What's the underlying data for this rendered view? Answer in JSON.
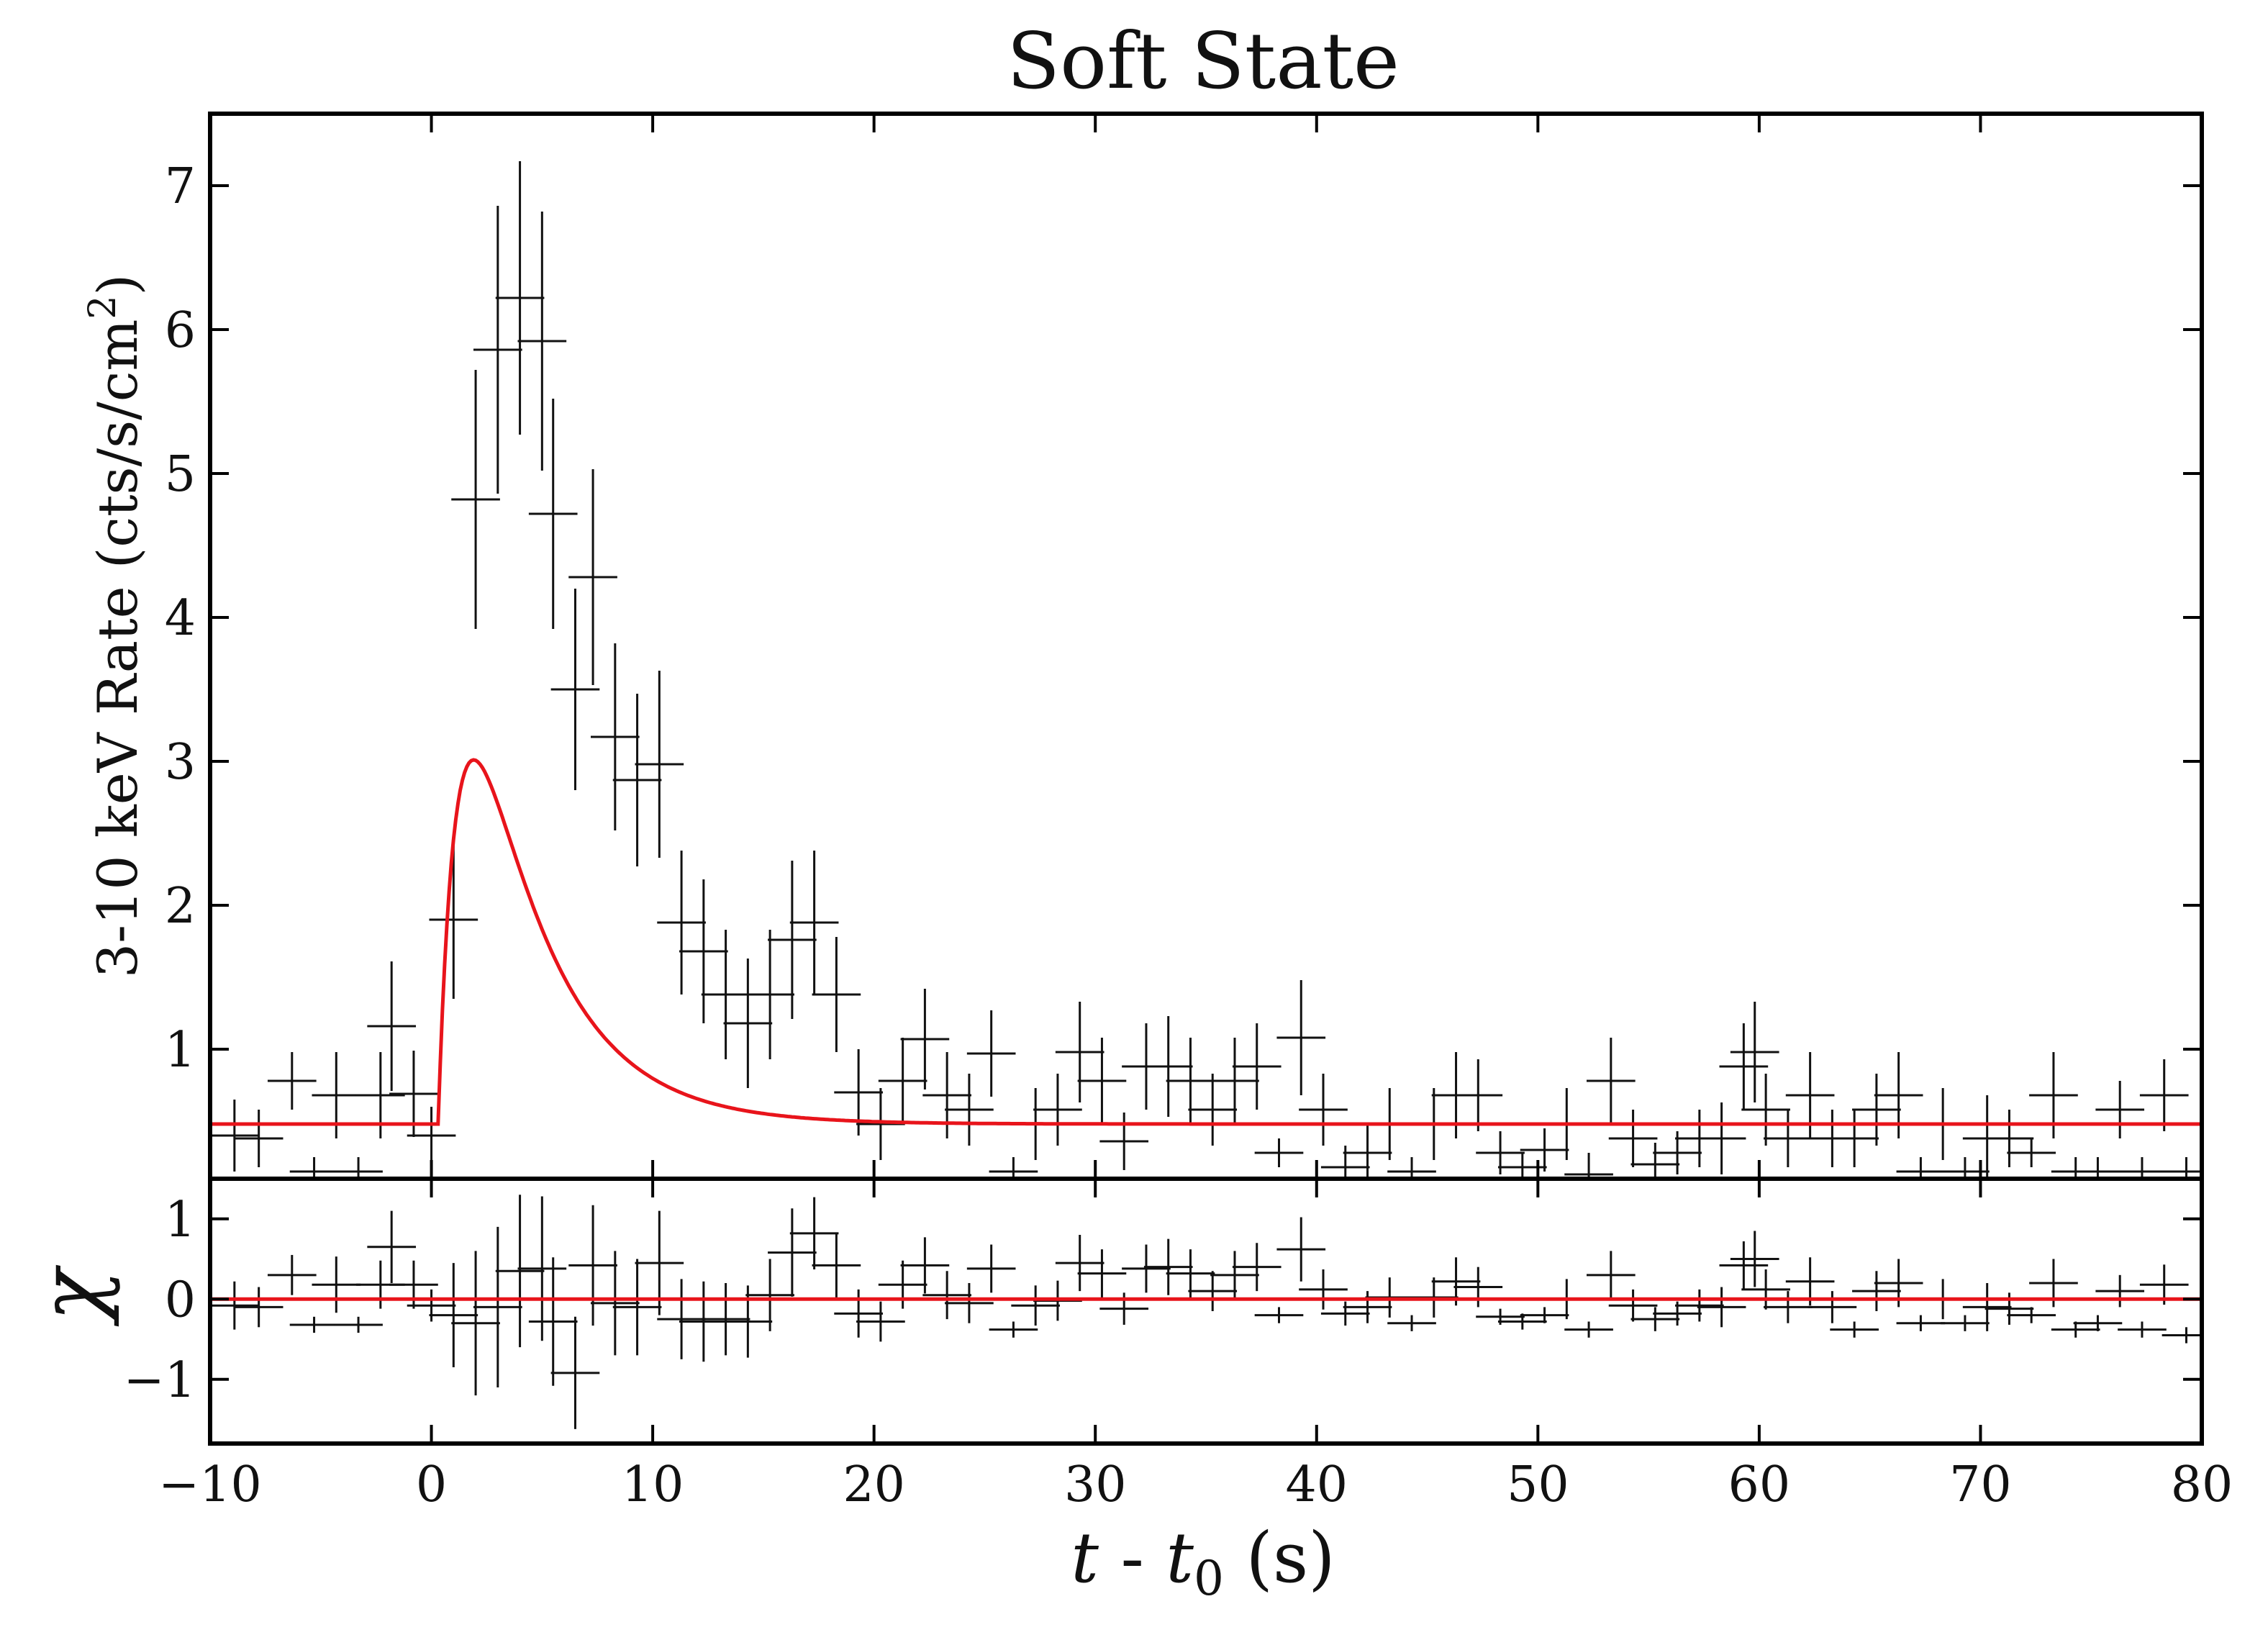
{
  "chart_data": {
    "title": "Soft State",
    "xlabel": {
      "var": "t",
      "dash": " - ",
      "sub_var": "t",
      "sub_index": "0",
      "unit": " (s)"
    },
    "x_range": [
      -10,
      80
    ],
    "x_ticks": [
      -10,
      0,
      10,
      20,
      30,
      40,
      50,
      60,
      70,
      80
    ],
    "x_tick_labels": [
      "−10",
      "0",
      "10",
      "20",
      "30",
      "40",
      "50",
      "60",
      "70",
      "80"
    ],
    "bin_width": 2.2,
    "panels": [
      {
        "name": "rate",
        "type": "errorbar",
        "ylabel": {
          "main": "3-10 keV Rate (cts/s/cm",
          "sup": "2",
          "close": ")"
        },
        "y_range": [
          0.1,
          7.5
        ],
        "y_ticks": [
          1,
          2,
          3,
          4,
          5,
          6,
          7
        ],
        "y_tick_labels": [
          "1",
          "2",
          "3",
          "4",
          "5",
          "6",
          "7"
        ],
        "model": {
          "type": "fred",
          "baseline": 0.48,
          "amplitude": 5.5,
          "start": 0.3,
          "rise_tau": 1.2,
          "decay_tau": 3.4
        },
        "points": [
          {
            "x": -8.9,
            "y": 0.4,
            "err": 0.25
          },
          {
            "x": -7.8,
            "y": 0.38,
            "err": 0.2
          },
          {
            "x": -6.3,
            "y": 0.78,
            "err": 0.2
          },
          {
            "x": -5.3,
            "y": 0.15,
            "err": 0.1
          },
          {
            "x": -4.3,
            "y": 0.68,
            "err": 0.3
          },
          {
            "x": -3.3,
            "y": 0.15,
            "err": 0.1
          },
          {
            "x": -2.3,
            "y": 0.68,
            "err": 0.3
          },
          {
            "x": -1.8,
            "y": 1.16,
            "err": 0.45
          },
          {
            "x": -0.8,
            "y": 0.69,
            "err": 0.3
          },
          {
            "x": 0.0,
            "y": 0.4,
            "err": 0.2
          },
          {
            "x": 1.0,
            "y": 1.9,
            "err": 0.55
          },
          {
            "x": 2.0,
            "y": 4.82,
            "err": 0.9
          },
          {
            "x": 3.0,
            "y": 5.86,
            "err": 1.0
          },
          {
            "x": 4.0,
            "y": 6.22,
            "err": 0.95
          },
          {
            "x": 5.0,
            "y": 5.92,
            "err": 0.9
          },
          {
            "x": 5.5,
            "y": 4.72,
            "err": 0.8
          },
          {
            "x": 6.5,
            "y": 3.5,
            "err": 0.7
          },
          {
            "x": 7.3,
            "y": 4.28,
            "err": 0.75
          },
          {
            "x": 8.3,
            "y": 3.17,
            "err": 0.65
          },
          {
            "x": 9.3,
            "y": 2.87,
            "err": 0.6
          },
          {
            "x": 10.3,
            "y": 2.98,
            "err": 0.65
          },
          {
            "x": 11.3,
            "y": 1.88,
            "err": 0.5
          },
          {
            "x": 12.3,
            "y": 1.68,
            "err": 0.5
          },
          {
            "x": 13.3,
            "y": 1.38,
            "err": 0.45
          },
          {
            "x": 14.3,
            "y": 1.18,
            "err": 0.45
          },
          {
            "x": 15.3,
            "y": 1.38,
            "err": 0.45
          },
          {
            "x": 16.3,
            "y": 1.76,
            "err": 0.55
          },
          {
            "x": 17.3,
            "y": 1.88,
            "err": 0.5
          },
          {
            "x": 18.3,
            "y": 1.38,
            "err": 0.4
          },
          {
            "x": 19.3,
            "y": 0.7,
            "err": 0.3
          },
          {
            "x": 20.3,
            "y": 0.48,
            "err": 0.25
          },
          {
            "x": 21.3,
            "y": 0.78,
            "err": 0.3
          },
          {
            "x": 22.3,
            "y": 1.07,
            "err": 0.35
          },
          {
            "x": 23.3,
            "y": 0.68,
            "err": 0.3
          },
          {
            "x": 24.3,
            "y": 0.58,
            "err": 0.25
          },
          {
            "x": 25.3,
            "y": 0.97,
            "err": 0.3
          },
          {
            "x": 26.3,
            "y": 0.15,
            "err": 0.1
          },
          {
            "x": 27.3,
            "y": 0.48,
            "err": 0.25
          },
          {
            "x": 28.3,
            "y": 0.58,
            "err": 0.25
          },
          {
            "x": 29.3,
            "y": 0.98,
            "err": 0.35
          },
          {
            "x": 30.3,
            "y": 0.78,
            "err": 0.3
          },
          {
            "x": 31.3,
            "y": 0.36,
            "err": 0.2
          },
          {
            "x": 32.3,
            "y": 0.88,
            "err": 0.3
          },
          {
            "x": 33.3,
            "y": 0.88,
            "err": 0.35
          },
          {
            "x": 34.3,
            "y": 0.78,
            "err": 0.3
          },
          {
            "x": 35.3,
            "y": 0.58,
            "err": 0.25
          },
          {
            "x": 36.3,
            "y": 0.78,
            "err": 0.3
          },
          {
            "x": 37.3,
            "y": 0.88,
            "err": 0.3
          },
          {
            "x": 38.3,
            "y": 0.28,
            "err": 0.1
          },
          {
            "x": 39.3,
            "y": 1.08,
            "err": 0.4
          },
          {
            "x": 40.3,
            "y": 0.58,
            "err": 0.25
          },
          {
            "x": 41.3,
            "y": 0.18,
            "err": 0.15
          },
          {
            "x": 42.3,
            "y": 0.28,
            "err": 0.2
          },
          {
            "x": 43.3,
            "y": 0.48,
            "err": 0.25
          },
          {
            "x": 44.3,
            "y": 0.15,
            "err": 0.1
          },
          {
            "x": 45.3,
            "y": 0.48,
            "err": 0.25
          },
          {
            "x": 46.3,
            "y": 0.68,
            "err": 0.3
          },
          {
            "x": 47.3,
            "y": 0.68,
            "err": 0.25
          },
          {
            "x": 48.3,
            "y": 0.28,
            "err": 0.15
          },
          {
            "x": 49.3,
            "y": 0.18,
            "err": 0.1
          },
          {
            "x": 50.3,
            "y": 0.3,
            "err": 0.15
          },
          {
            "x": 51.3,
            "y": 0.48,
            "err": 0.25
          },
          {
            "x": 52.3,
            "y": 0.13,
            "err": 0.15
          },
          {
            "x": 53.3,
            "y": 0.78,
            "err": 0.3
          },
          {
            "x": 54.3,
            "y": 0.38,
            "err": 0.2
          },
          {
            "x": 55.3,
            "y": 0.2,
            "err": 0.15
          },
          {
            "x": 56.3,
            "y": 0.28,
            "err": 0.15
          },
          {
            "x": 57.3,
            "y": 0.38,
            "err": 0.2
          },
          {
            "x": 58.3,
            "y": 0.38,
            "err": 0.25
          },
          {
            "x": 59.3,
            "y": 0.88,
            "err": 0.3
          },
          {
            "x": 59.8,
            "y": 0.98,
            "err": 0.35
          },
          {
            "x": 60.3,
            "y": 0.58,
            "err": 0.25
          },
          {
            "x": 61.3,
            "y": 0.38,
            "err": 0.2
          },
          {
            "x": 62.3,
            "y": 0.68,
            "err": 0.3
          },
          {
            "x": 63.3,
            "y": 0.38,
            "err": 0.2
          },
          {
            "x": 64.3,
            "y": 0.38,
            "err": 0.2
          },
          {
            "x": 65.3,
            "y": 0.58,
            "err": 0.25
          },
          {
            "x": 66.3,
            "y": 0.68,
            "err": 0.3
          },
          {
            "x": 67.3,
            "y": 0.15,
            "err": 0.1
          },
          {
            "x": 68.3,
            "y": 0.48,
            "err": 0.25
          },
          {
            "x": 69.3,
            "y": 0.15,
            "err": 0.1
          },
          {
            "x": 70.3,
            "y": 0.38,
            "err": 0.3
          },
          {
            "x": 71.3,
            "y": 0.38,
            "err": 0.2
          },
          {
            "x": 72.3,
            "y": 0.28,
            "err": 0.1
          },
          {
            "x": 73.3,
            "y": 0.68,
            "err": 0.3
          },
          {
            "x": 74.3,
            "y": 0.15,
            "err": 0.1
          },
          {
            "x": 75.3,
            "y": 0.15,
            "err": 0.1
          },
          {
            "x": 76.3,
            "y": 0.58,
            "err": 0.2
          },
          {
            "x": 77.3,
            "y": 0.15,
            "err": 0.1
          },
          {
            "x": 78.3,
            "y": 0.68,
            "err": 0.25
          },
          {
            "x": 79.3,
            "y": 0.15,
            "err": 0.1
          }
        ]
      },
      {
        "name": "residuals",
        "type": "errorbar",
        "ylabel": {
          "symbol": "χ"
        },
        "y_range": [
          -1.8,
          1.5
        ],
        "y_ticks": [
          -1,
          0,
          1
        ],
        "y_tick_labels": [
          "−1",
          "0",
          "1"
        ],
        "model": {
          "type": "constant",
          "value": 0
        },
        "points": [
          {
            "x": -8.9,
            "y": -0.08,
            "err": 0.3
          },
          {
            "x": -7.8,
            "y": -0.1,
            "err": 0.25
          },
          {
            "x": -6.3,
            "y": 0.3,
            "err": 0.25
          },
          {
            "x": -5.3,
            "y": -0.32,
            "err": 0.1
          },
          {
            "x": -4.3,
            "y": 0.18,
            "err": 0.35
          },
          {
            "x": -3.3,
            "y": -0.32,
            "err": 0.1
          },
          {
            "x": -2.3,
            "y": 0.18,
            "err": 0.3
          },
          {
            "x": -1.8,
            "y": 0.65,
            "err": 0.45
          },
          {
            "x": -0.8,
            "y": 0.18,
            "err": 0.3
          },
          {
            "x": 0.0,
            "y": -0.08,
            "err": 0.2
          },
          {
            "x": 1.0,
            "y": -0.2,
            "err": 0.65
          },
          {
            "x": 2.0,
            "y": -0.3,
            "err": 0.9
          },
          {
            "x": 3.0,
            "y": -0.1,
            "err": 1.0
          },
          {
            "x": 4.0,
            "y": 0.35,
            "err": 0.95
          },
          {
            "x": 5.0,
            "y": 0.38,
            "err": 0.9
          },
          {
            "x": 5.5,
            "y": -0.28,
            "err": 0.8
          },
          {
            "x": 6.5,
            "y": -0.92,
            "err": 0.7
          },
          {
            "x": 7.3,
            "y": 0.42,
            "err": 0.75
          },
          {
            "x": 8.3,
            "y": -0.05,
            "err": 0.65
          },
          {
            "x": 9.3,
            "y": -0.1,
            "err": 0.6
          },
          {
            "x": 10.3,
            "y": 0.45,
            "err": 0.65
          },
          {
            "x": 11.3,
            "y": -0.25,
            "err": 0.5
          },
          {
            "x": 12.3,
            "y": -0.28,
            "err": 0.5
          },
          {
            "x": 13.3,
            "y": -0.25,
            "err": 0.45
          },
          {
            "x": 14.3,
            "y": -0.28,
            "err": 0.45
          },
          {
            "x": 15.3,
            "y": 0.05,
            "err": 0.45
          },
          {
            "x": 16.3,
            "y": 0.58,
            "err": 0.55
          },
          {
            "x": 17.3,
            "y": 0.82,
            "err": 0.45
          },
          {
            "x": 18.3,
            "y": 0.42,
            "err": 0.4
          },
          {
            "x": 19.3,
            "y": -0.18,
            "err": 0.3
          },
          {
            "x": 20.3,
            "y": -0.28,
            "err": 0.25
          },
          {
            "x": 21.3,
            "y": 0.18,
            "err": 0.3
          },
          {
            "x": 22.3,
            "y": 0.42,
            "err": 0.35
          },
          {
            "x": 23.3,
            "y": 0.05,
            "err": 0.3
          },
          {
            "x": 24.3,
            "y": -0.05,
            "err": 0.25
          },
          {
            "x": 25.3,
            "y": 0.38,
            "err": 0.3
          },
          {
            "x": 26.3,
            "y": -0.38,
            "err": 0.1
          },
          {
            "x": 27.3,
            "y": -0.08,
            "err": 0.25
          },
          {
            "x": 28.3,
            "y": -0.02,
            "err": 0.25
          },
          {
            "x": 29.3,
            "y": 0.45,
            "err": 0.35
          },
          {
            "x": 30.3,
            "y": 0.32,
            "err": 0.3
          },
          {
            "x": 31.3,
            "y": -0.12,
            "err": 0.2
          },
          {
            "x": 32.3,
            "y": 0.38,
            "err": 0.3
          },
          {
            "x": 33.3,
            "y": 0.4,
            "err": 0.35
          },
          {
            "x": 34.3,
            "y": 0.32,
            "err": 0.3
          },
          {
            "x": 35.3,
            "y": 0.1,
            "err": 0.25
          },
          {
            "x": 36.3,
            "y": 0.3,
            "err": 0.3
          },
          {
            "x": 37.3,
            "y": 0.4,
            "err": 0.3
          },
          {
            "x": 38.3,
            "y": -0.2,
            "err": 0.1
          },
          {
            "x": 39.3,
            "y": 0.62,
            "err": 0.4
          },
          {
            "x": 40.3,
            "y": 0.12,
            "err": 0.25
          },
          {
            "x": 41.3,
            "y": -0.18,
            "err": 0.15
          },
          {
            "x": 42.3,
            "y": -0.1,
            "err": 0.2
          },
          {
            "x": 43.3,
            "y": 0.02,
            "err": 0.25
          },
          {
            "x": 44.3,
            "y": -0.3,
            "err": 0.1
          },
          {
            "x": 45.3,
            "y": 0.02,
            "err": 0.25
          },
          {
            "x": 46.3,
            "y": 0.22,
            "err": 0.3
          },
          {
            "x": 47.3,
            "y": 0.15,
            "err": 0.25
          },
          {
            "x": 48.3,
            "y": -0.22,
            "err": 0.1
          },
          {
            "x": 49.3,
            "y": -0.28,
            "err": 0.1
          },
          {
            "x": 50.3,
            "y": -0.2,
            "err": 0.1
          },
          {
            "x": 51.3,
            "y": 0.0,
            "err": 0.25
          },
          {
            "x": 52.3,
            "y": -0.38,
            "err": 0.1
          },
          {
            "x": 53.3,
            "y": 0.3,
            "err": 0.3
          },
          {
            "x": 54.3,
            "y": -0.08,
            "err": 0.2
          },
          {
            "x": 55.3,
            "y": -0.25,
            "err": 0.15
          },
          {
            "x": 56.3,
            "y": -0.18,
            "err": 0.15
          },
          {
            "x": 57.3,
            "y": -0.08,
            "err": 0.2
          },
          {
            "x": 58.3,
            "y": -0.1,
            "err": 0.25
          },
          {
            "x": 59.3,
            "y": 0.42,
            "err": 0.3
          },
          {
            "x": 59.8,
            "y": 0.5,
            "err": 0.35
          },
          {
            "x": 60.3,
            "y": 0.12,
            "err": 0.25
          },
          {
            "x": 61.3,
            "y": -0.1,
            "err": 0.2
          },
          {
            "x": 62.3,
            "y": 0.22,
            "err": 0.3
          },
          {
            "x": 63.3,
            "y": -0.1,
            "err": 0.2
          },
          {
            "x": 64.3,
            "y": -0.38,
            "err": 0.1
          },
          {
            "x": 65.3,
            "y": 0.1,
            "err": 0.25
          },
          {
            "x": 66.3,
            "y": 0.2,
            "err": 0.3
          },
          {
            "x": 67.3,
            "y": -0.3,
            "err": 0.1
          },
          {
            "x": 68.3,
            "y": 0.0,
            "err": 0.25
          },
          {
            "x": 69.3,
            "y": -0.3,
            "err": 0.1
          },
          {
            "x": 70.3,
            "y": -0.1,
            "err": 0.3
          },
          {
            "x": 71.3,
            "y": -0.12,
            "err": 0.2
          },
          {
            "x": 72.3,
            "y": -0.2,
            "err": 0.1
          },
          {
            "x": 73.3,
            "y": 0.2,
            "err": 0.3
          },
          {
            "x": 74.3,
            "y": -0.38,
            "err": 0.1
          },
          {
            "x": 75.3,
            "y": -0.3,
            "err": 0.1
          },
          {
            "x": 76.3,
            "y": 0.1,
            "err": 0.2
          },
          {
            "x": 77.3,
            "y": -0.38,
            "err": 0.1
          },
          {
            "x": 78.3,
            "y": 0.18,
            "err": 0.25
          },
          {
            "x": 79.3,
            "y": -0.45,
            "err": 0.1
          }
        ]
      }
    ]
  },
  "colors": {
    "data": "#111111",
    "model": "#e8141b",
    "axes": "#000000"
  }
}
